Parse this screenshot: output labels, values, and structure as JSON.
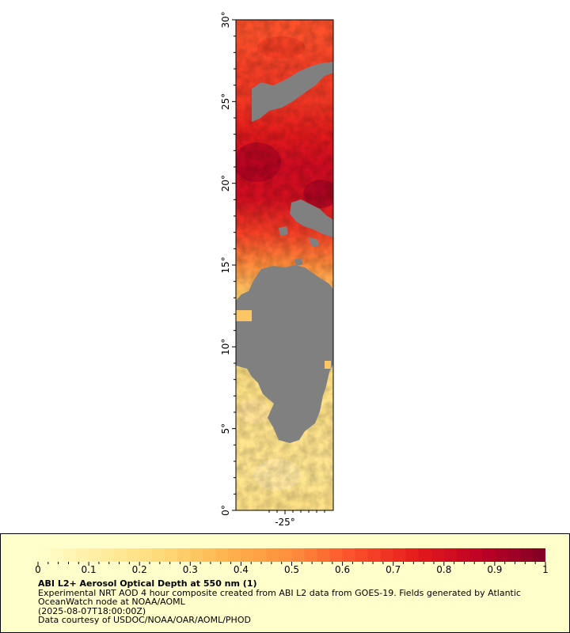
{
  "map": {
    "y_axis_labels": [
      "30°",
      "25°",
      "20°",
      "15°",
      "10°",
      "5°",
      "0°"
    ],
    "x_axis_labels": [
      "-25°"
    ],
    "no_data_color": "#808080"
  },
  "colorbar": {
    "tick_labels": [
      "0",
      "0.1",
      "0.2",
      "0.3",
      "0.4",
      "0.5",
      "0.6",
      "0.7",
      "0.8",
      "0.9",
      "1"
    ],
    "range": [
      0,
      1
    ],
    "colors": [
      "#ffffcc",
      "#ffeda0",
      "#fed976",
      "#feb24c",
      "#fd8d3c",
      "#fc4e2a",
      "#e31a1c",
      "#bd0026",
      "#800026"
    ]
  },
  "legend": {
    "title": "ABI L2+ Aerosol Optical Depth at 550 nm (1)",
    "line1": "Experimental NRT AOD 4 hour composite created from ABI L2 data from GOES-19. Fields generated by Atlantic",
    "line2": "OceanWatch node at NOAA/AOML",
    "line3": "(2025-08-07T18:00:00Z)",
    "line4": "Data courtesy of USDOC/NOAA/OAR/AOML/PHOD"
  },
  "chart_data": {
    "type": "heatmap",
    "variable": "ABI L2+ Aerosol Optical Depth at 550 nm (1)",
    "value_range": [
      0,
      1
    ],
    "lat_range": [
      0,
      30
    ],
    "lon_center": -25,
    "lat_ticks": [
      30,
      25,
      20,
      15,
      10,
      5,
      0
    ],
    "lon_ticks": [
      -25
    ],
    "aod_profile_by_latitude": [
      {
        "lat": 29,
        "aod": 0.62
      },
      {
        "lat": 27,
        "aod": 0.66
      },
      {
        "lat": 25,
        "aod": 0.68
      },
      {
        "lat": 23,
        "aod": 0.75
      },
      {
        "lat": 21,
        "aod": 0.82
      },
      {
        "lat": 19,
        "aod": 0.8
      },
      {
        "lat": 17,
        "aod": 0.66
      },
      {
        "lat": 15,
        "aod": 0.5
      },
      {
        "lat": 13,
        "aod": 0.28
      },
      {
        "lat": 10,
        "aod": 0.22
      },
      {
        "lat": 7,
        "aod": 0.2
      },
      {
        "lat": 4,
        "aod": 0.18
      },
      {
        "lat": 2,
        "aod": 0.17
      },
      {
        "lat": 0.5,
        "aod": 0.2
      }
    ],
    "missing_data_region": "gray area approximately 5°N–14°N"
  }
}
